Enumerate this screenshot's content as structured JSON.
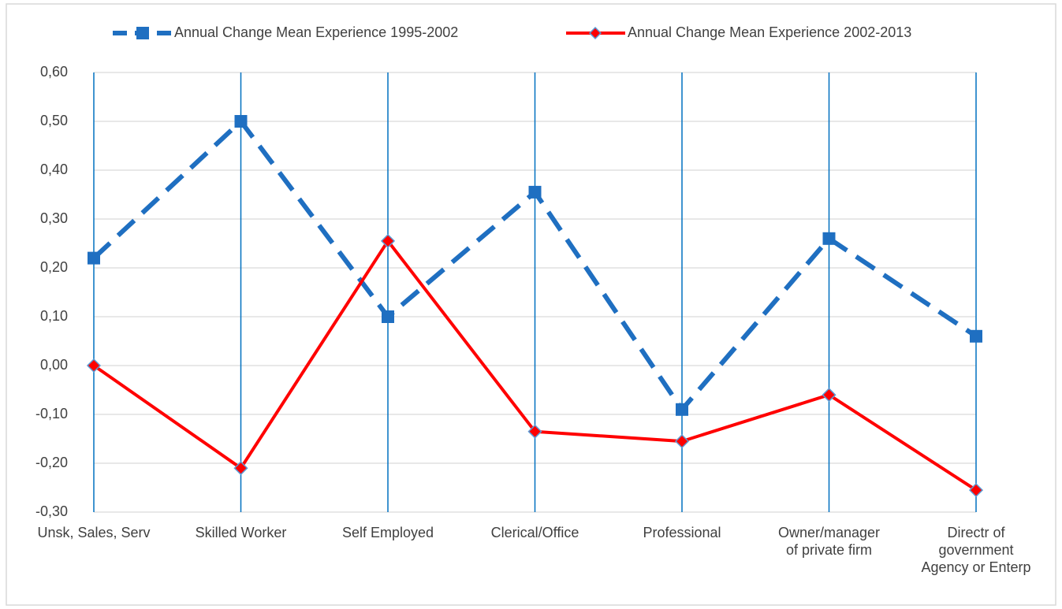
{
  "chart_data": {
    "type": "line",
    "categories": [
      "Unsk, Sales, Serv",
      "Skilled Worker",
      "Self Employed",
      "Clerical/Office",
      "Professional",
      "Owner/manager\nof private firm",
      "Directr  of\ngovernment\nAgency or Enterp"
    ],
    "series": [
      {
        "name": "Annual Change Mean Experience 1995-2002",
        "color": "#1f6fc1",
        "values": [
          0.22,
          0.5,
          0.1,
          0.355,
          -0.09,
          0.26,
          0.06
        ]
      },
      {
        "name": "Annual Change Mean Experience 2002-2013",
        "color": "#ff0000",
        "values": [
          0,
          -0.21,
          0.255,
          -0.135,
          -0.155,
          -0.06,
          -0.255
        ]
      }
    ],
    "ylim": [
      -0.3,
      0.6
    ],
    "yticks": [
      {
        "value": -0.3,
        "label": "-0,30"
      },
      {
        "value": -0.2,
        "label": "-0,20"
      },
      {
        "value": -0.1,
        "label": "-0,10"
      },
      {
        "value": 0,
        "label": "0,00"
      },
      {
        "value": 0.1,
        "label": "0,10"
      },
      {
        "value": 0.2,
        "label": "0,20"
      },
      {
        "value": 0.3,
        "label": "0,30"
      },
      {
        "value": 0.4,
        "label": "0,40"
      },
      {
        "value": 0.5,
        "label": "0,50"
      },
      {
        "value": 0.6,
        "label": "0,60"
      }
    ],
    "grid": true,
    "legend": "top"
  }
}
